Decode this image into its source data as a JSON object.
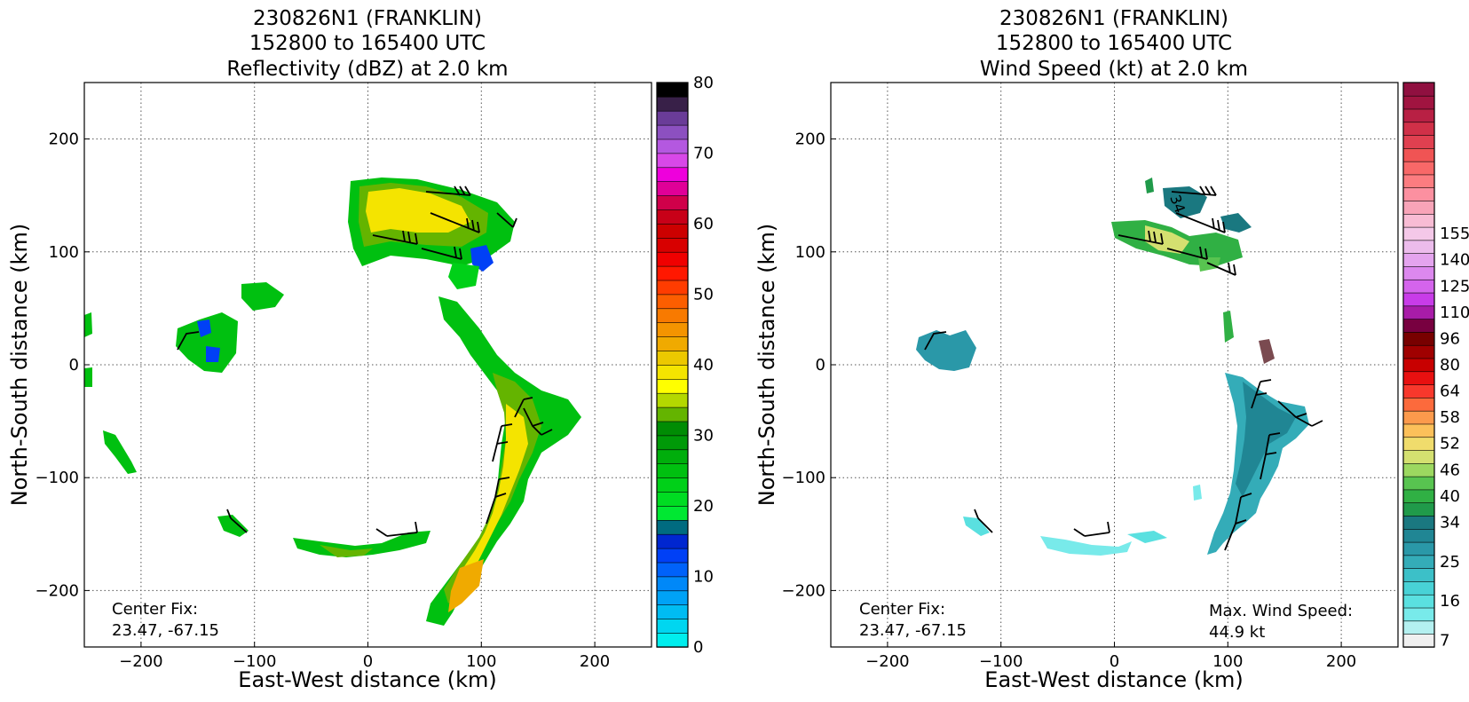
{
  "chart_data": [
    {
      "type": "heatmap",
      "title": [
        "230826N1 (FRANKLIN)",
        "152800 to 165400 UTC",
        "Reflectivity (dBZ) at 2.0 km"
      ],
      "xlabel": "East-West distance (km)",
      "ylabel": "North-South distance (km)",
      "xlim": [
        -250,
        250
      ],
      "ylim": [
        -250,
        250
      ],
      "xticks": [
        -200,
        -100,
        0,
        100,
        200
      ],
      "yticks": [
        -200,
        -100,
        0,
        100,
        200
      ],
      "grid": true,
      "colorbar": {
        "min": 0,
        "max": 80,
        "tick_values": [
          0,
          10,
          20,
          30,
          40,
          50,
          60,
          70,
          80
        ],
        "tick_labels": [
          "0",
          "10",
          "20",
          "30",
          "40",
          "50",
          "60",
          "70",
          "80"
        ],
        "colors": [
          "#00eeee",
          "#00d6f0",
          "#00bcf2",
          "#00a2f6",
          "#0088f8",
          "#0062fa",
          "#0040f6",
          "#0026d0",
          "#006b80",
          "#00e832",
          "#00dc22",
          "#00d018",
          "#00c010",
          "#00ae0c",
          "#009a08",
          "#008c04",
          "#64b400",
          "#b4d800",
          "#ffff00",
          "#f4e400",
          "#ecc800",
          "#f0aa00",
          "#f49400",
          "#f87a00",
          "#fc5e00",
          "#ff3c00",
          "#ff1800",
          "#f00000",
          "#d80000",
          "#cc0000",
          "#c80018",
          "#d0004a",
          "#e00098",
          "#ee00dc",
          "#d848e8",
          "#b458e0",
          "#8c50c0",
          "#6a3c98",
          "#382048",
          "#000000"
        ],
        "steps": 40
      },
      "annotations": [
        {
          "label": "Center Fix:",
          "value": "23.47, -67.15"
        }
      ]
    },
    {
      "type": "heatmap",
      "title": [
        "230826N1 (FRANKLIN)",
        "152800 to 165400 UTC",
        "Wind Speed (kt) at 2.0 km"
      ],
      "xlabel": "East-West distance (km)",
      "ylabel": "North-South distance (km)",
      "xlim": [
        -250,
        250
      ],
      "ylim": [
        -250,
        250
      ],
      "xticks": [
        -200,
        -100,
        0,
        100,
        200
      ],
      "yticks": [
        -200,
        -100,
        0,
        100,
        200
      ],
      "grid": true,
      "colorbar": {
        "tick_labels": [
          "7",
          "16",
          "25",
          "34",
          "40",
          "46",
          "52",
          "58",
          "64",
          "80",
          "96",
          "110",
          "125",
          "140",
          "155"
        ],
        "tick_index": [
          0,
          3,
          6,
          9,
          11,
          13,
          15,
          17,
          19,
          21,
          23,
          25,
          27,
          29,
          31
        ],
        "colors": [
          "#f0f0f0",
          "#b4f0f0",
          "#78eaea",
          "#5ae0e0",
          "#48d2d6",
          "#3cc0c8",
          "#34acb8",
          "#2a98a8",
          "#208694",
          "#1a7880",
          "#209a4a",
          "#30b044",
          "#58c450",
          "#9cd860",
          "#d4e070",
          "#f0dc6c",
          "#fcc05a",
          "#fc9a4c",
          "#fc6a3c",
          "#f8382c",
          "#e81010",
          "#c80000",
          "#a00000",
          "#780000",
          "#780040",
          "#a81ca8",
          "#c83ce8",
          "#d464ec",
          "#dc88ee",
          "#e4a4ee",
          "#ecbcec",
          "#f4c8e8",
          "#f8bcd4",
          "#f8a4b8",
          "#fc90a0",
          "#fc7c80",
          "#f86868",
          "#f05454",
          "#e04050",
          "#d03048",
          "#b82044",
          "#a01440",
          "#901040"
        ],
        "steps": 43
      },
      "annotations": [
        {
          "label": "Center Fix:",
          "value": "23.47, -67.15"
        },
        {
          "label": "Max. Wind Speed:",
          "value": "44.9 kt"
        }
      ],
      "contour_label": "34"
    }
  ]
}
